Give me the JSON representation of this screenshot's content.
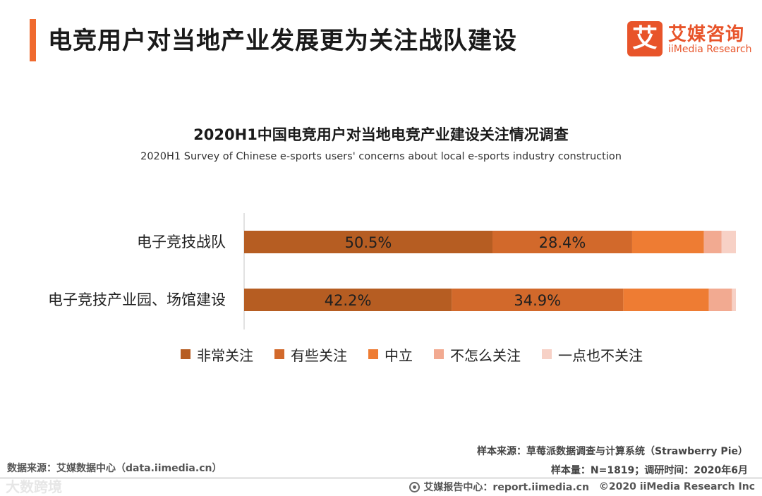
{
  "header": {
    "title": "电竞用户对当地产业发展更为关注战队建设",
    "accent_color": "#f06a2f"
  },
  "logo": {
    "mark": "艾",
    "cn": "艾媒咨询",
    "en": "iiMedia Research",
    "color": "#e8542a"
  },
  "chart_data": {
    "type": "bar",
    "orientation": "horizontal",
    "stacked": true,
    "percent_stacked": true,
    "title": "2020H1中国电竞用户对当地电竞产业建设关注情况调查",
    "subtitle": "2020H1 Survey of Chinese e-sports users' concerns about local e-sports industry construction",
    "categories": [
      "电子竞技战队",
      "电子竞技产业园、场馆建设"
    ],
    "series": [
      {
        "name": "非常关注",
        "color": "#b65d22",
        "values": [
          50.5,
          42.2
        ],
        "labels": [
          "50.5%",
          "42.2%"
        ]
      },
      {
        "name": "有些关注",
        "color": "#d2692b",
        "values": [
          28.4,
          34.9
        ],
        "labels": [
          "28.4%",
          "34.9%"
        ]
      },
      {
        "name": "中立",
        "color": "#ee7c33",
        "values": [
          14.6,
          17.4
        ],
        "labels": [
          "",
          ""
        ]
      },
      {
        "name": "不怎么关注",
        "color": "#f2aa91",
        "values": [
          3.6,
          4.7
        ],
        "labels": [
          "",
          ""
        ]
      },
      {
        "name": "一点也不关注",
        "color": "#f7d1c6",
        "values": [
          2.9,
          0.8
        ],
        "labels": [
          "",
          ""
        ]
      }
    ],
    "xlim": [
      0,
      100
    ],
    "legend_position": "bottom"
  },
  "footer": {
    "sample_source": "样本来源：草莓派数据调查与计算系统（Strawberry Pie）",
    "sample_info": "样本量：N=1819；调研时间：2020年6月",
    "data_source": "数据来源：艾媒数据中心（data.iimedia.cn）",
    "report_center": "艾媒报告中心：report.iimedia.cn",
    "copyright": "©2020  iiMedia Research  Inc",
    "watermark": "大数跨境"
  }
}
